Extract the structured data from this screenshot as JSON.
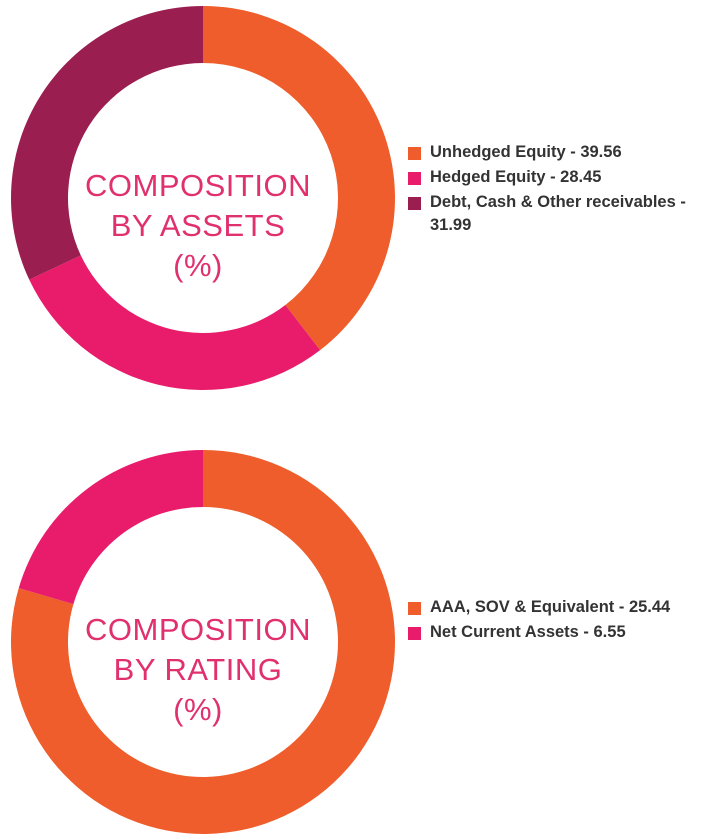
{
  "charts": {
    "assets": {
      "title_lines": [
        "COMPOSITION",
        "BY ASSETS",
        "(%)"
      ]
    },
    "rating": {
      "title_lines": [
        "COMPOSITION",
        "BY RATING",
        "(%)"
      ]
    }
  },
  "chart_data": [
    {
      "type": "pie",
      "donut": true,
      "title": "COMPOSITION BY ASSETS (%)",
      "legend_position": "right",
      "slices": [
        {
          "label": "Unhedged Equity - 39.56",
          "name": "Unhedged Equity",
          "value": 39.56,
          "color": "#ee5d2b"
        },
        {
          "label": "Hedged Equity - 28.45",
          "name": "Hedged Equity",
          "value": 28.45,
          "color": "#e91b6b"
        },
        {
          "label": "Debt, Cash & Other receivables - 31.99",
          "name": "Debt, Cash & Other receivables",
          "value": 31.99,
          "color": "#9a1e50"
        }
      ]
    },
    {
      "type": "pie",
      "donut": true,
      "title": "COMPOSITION BY RATING (%)",
      "legend_position": "right",
      "slices": [
        {
          "label": "AAA, SOV & Equivalent - 25.44",
          "name": "AAA, SOV & Equivalent",
          "value": 25.44,
          "color": "#ee5d2b"
        },
        {
          "label": "Net Current Assets - 6.55",
          "name": "Net Current Assets",
          "value": 6.55,
          "color": "#e91b6b"
        }
      ]
    }
  ]
}
